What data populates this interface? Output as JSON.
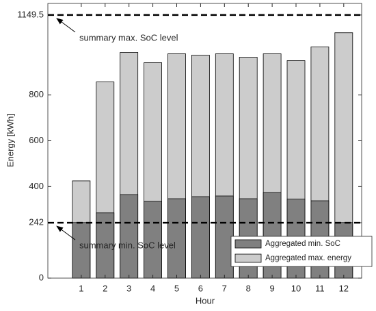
{
  "chart_data": {
    "type": "bar",
    "x_label": "Hour",
    "y_label": "Energy [kWh]",
    "x": [
      1,
      2,
      3,
      4,
      5,
      6,
      7,
      8,
      9,
      10,
      11,
      12
    ],
    "xlim": [
      -0.4,
      12.75
    ],
    "xticks": [
      1,
      2,
      3,
      4,
      5,
      6,
      7,
      8,
      9,
      10,
      11,
      12
    ],
    "ylim": [
      0,
      1200
    ],
    "yticks": [
      0,
      242,
      400,
      600,
      800,
      1149.5
    ],
    "series": [
      {
        "name": "Aggregated max. energy",
        "color": "#cccccc",
        "values": [
          425,
          857,
          986,
          941,
          980,
          974,
          980,
          965,
          980,
          950,
          1010,
          1072
        ]
      },
      {
        "name": "Aggregated min. SoC",
        "color": "#808080",
        "values": [
          243,
          285,
          365,
          335,
          347,
          356,
          359,
          347,
          374,
          345,
          338,
          243
        ]
      }
    ],
    "legend_order": [
      1,
      0
    ],
    "legend": "lower right",
    "annotations": [
      {
        "value": 1149.5,
        "label": "summary max. SoC level"
      },
      {
        "value": 242,
        "label": "summary min. SoC level"
      }
    ]
  }
}
